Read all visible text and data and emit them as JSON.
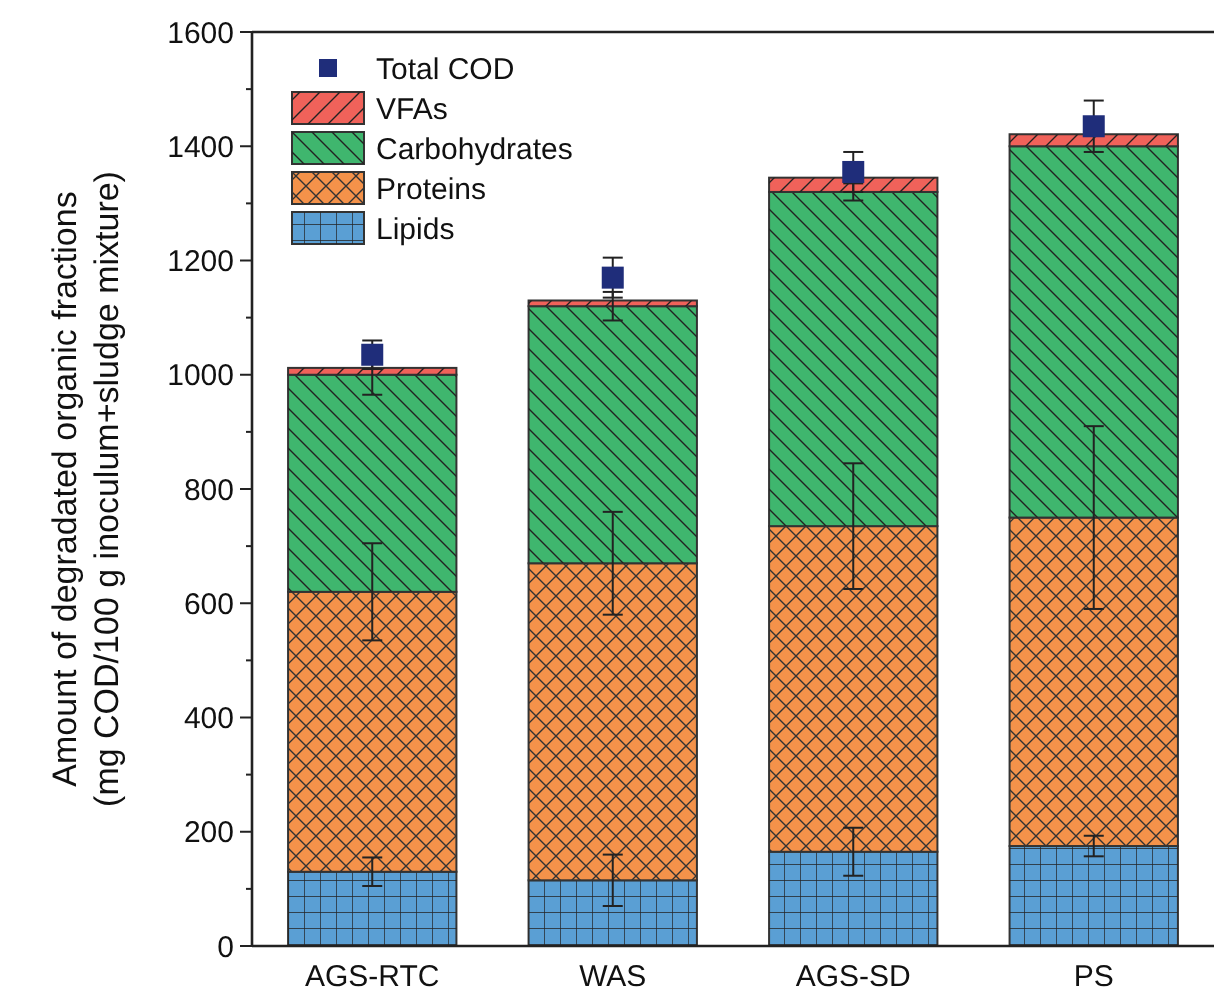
{
  "chart_data": {
    "type": "bar",
    "stacked": true,
    "categories": [
      "AGS-RTC",
      "WAS",
      "AGS-SD",
      "PS"
    ],
    "ylabel": "Amount of degradated organic fractions\n(mg COD/100 g inoculum+sludge mixture)",
    "ylim": [
      0,
      1600
    ],
    "yticks": [
      0,
      {
        "value": 100,
        "label": null
      },
      200,
      {
        "value": 300,
        "label": null
      },
      400,
      {
        "value": 500,
        "label": null
      },
      600,
      {
        "value": 700,
        "label": null
      },
      800,
      {
        "value": 900,
        "label": null
      },
      1000,
      {
        "value": 1100,
        "label": null
      },
      1200,
      {
        "value": 1300,
        "label": null
      },
      1400,
      {
        "value": 1500,
        "label": null
      },
      1600
    ],
    "series": [
      {
        "name": "Lipids",
        "color": "#5a9fd4",
        "values": [
          130,
          115,
          165,
          175
        ],
        "errors": [
          25,
          45,
          42,
          18
        ]
      },
      {
        "name": "Proteins",
        "color": "#f4924a",
        "values": [
          490,
          555,
          570,
          575
        ],
        "errors": [
          85,
          90,
          110,
          160
        ]
      },
      {
        "name": "Carbohydrates",
        "color": "#3fb66e",
        "values": [
          380,
          450,
          585,
          650
        ],
        "errors": [
          35,
          25,
          15,
          null
        ]
      },
      {
        "name": "VFAs",
        "color": "#f0625a",
        "values": [
          12,
          10,
          25,
          21
        ]
      },
      {
        "name": "Total COD",
        "type": "scatter",
        "marker": "square",
        "color": "#1f2d7a",
        "x": [
          "AGS-RTC",
          "WAS",
          "AGS-SD",
          "PS"
        ],
        "values": [
          1035,
          1170,
          1355,
          1435
        ],
        "errors": [
          25,
          35,
          35,
          45
        ]
      }
    ],
    "legend": "top left",
    "grid": false
  }
}
